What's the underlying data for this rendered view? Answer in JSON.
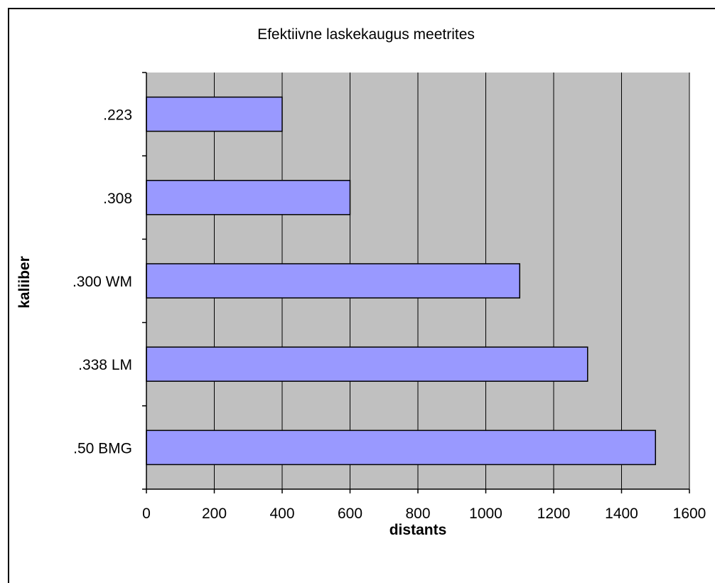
{
  "chart_data": {
    "type": "bar",
    "orientation": "horizontal",
    "title": "Efektiivne laskekaugus meetrites",
    "xlabel": "distants",
    "ylabel": "kaliiber",
    "categories": [
      ".223",
      ".308",
      ".300 WM",
      ".338 LM",
      ".50 BMG"
    ],
    "values": [
      400,
      600,
      1100,
      1300,
      1500
    ],
    "xlim": [
      0,
      1600
    ],
    "xticks": [
      0,
      200,
      400,
      600,
      800,
      1000,
      1200,
      1400,
      1600
    ],
    "grid": "vertical",
    "legend": "none",
    "colors": {
      "bar": "#9999ff",
      "plot_background": "#c0c0c0",
      "gridline": "#000000"
    }
  }
}
